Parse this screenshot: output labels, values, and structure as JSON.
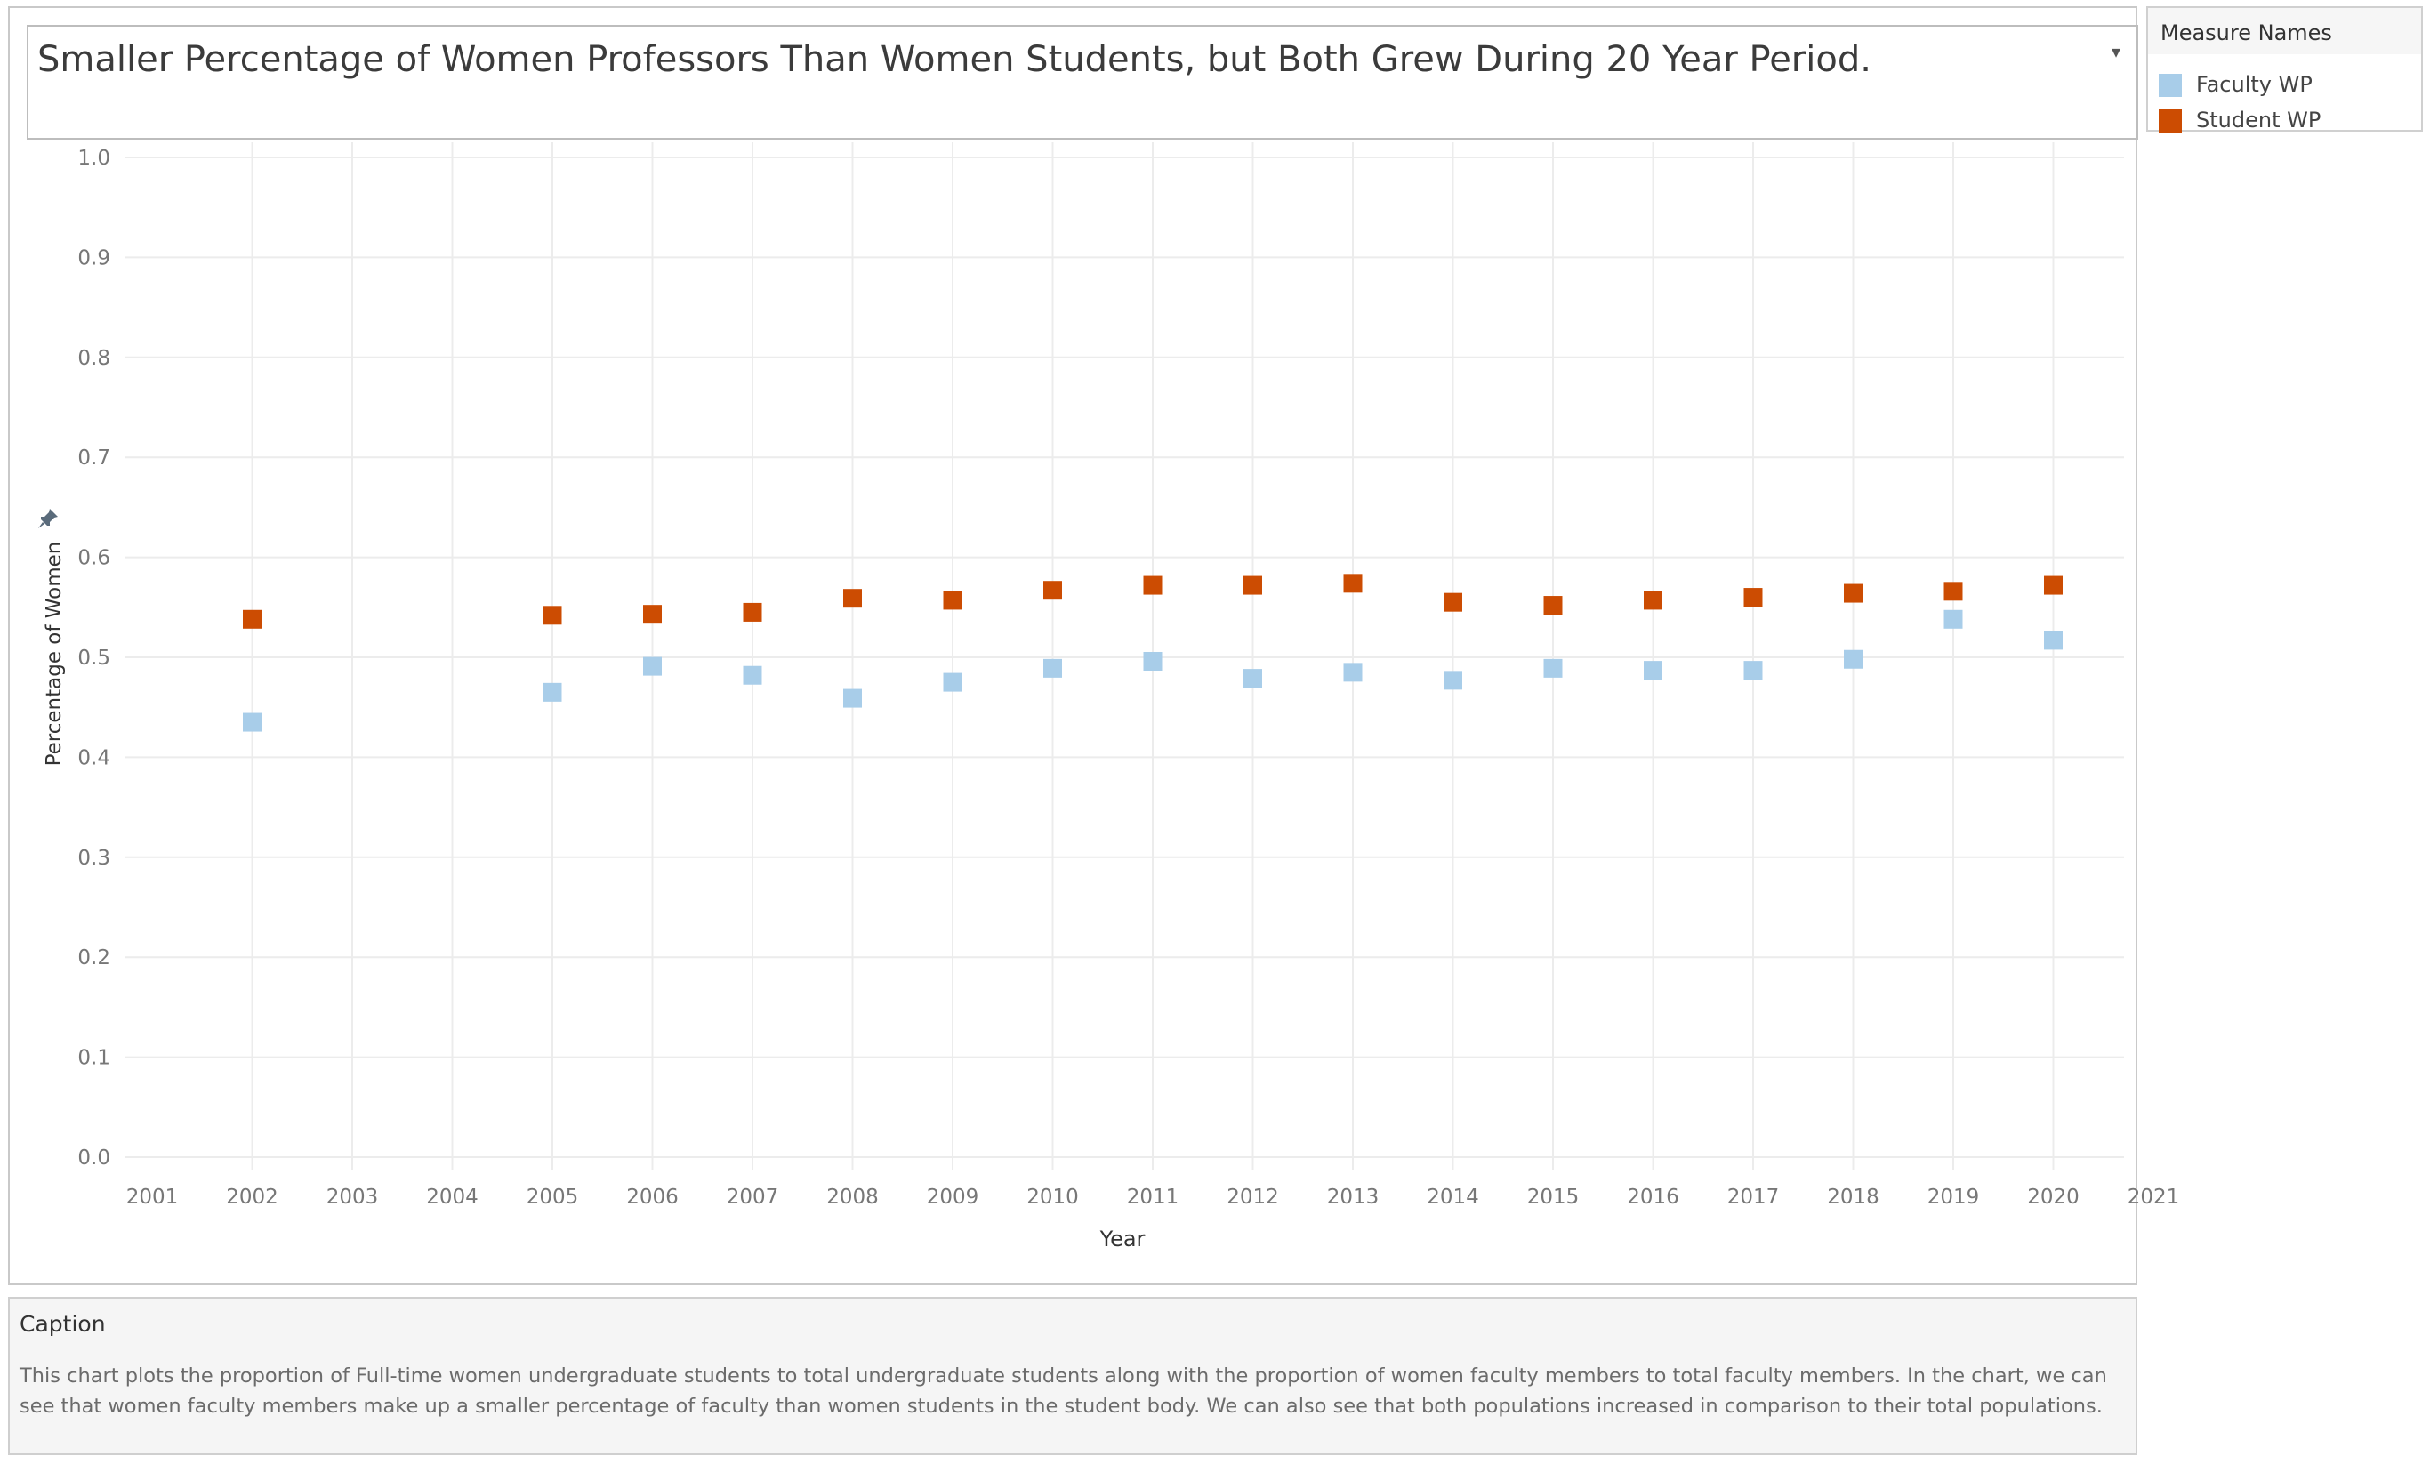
{
  "title": "Smaller Percentage of Women Professors Than Women Students, but Both Grew During 20 Year Period.",
  "icons": {
    "title_menu": "dropdown-arrow-icon",
    "axis_pin": "pin-icon"
  },
  "legend": {
    "title": "Measure Names",
    "items": [
      {
        "label": "Faculty WP",
        "color": "#a8cde9"
      },
      {
        "label": "Student WP",
        "color": "#cc4c02"
      }
    ]
  },
  "caption": {
    "title": "Caption",
    "text": "This chart plots the proportion of Full-time women undergraduate students to total undergraduate students along with the proportion of women faculty members to total faculty members. In the chart, we can see that women faculty members make up a smaller percentage of faculty than women students in the student body. We can also see that both populations increased in comparison to their total populations."
  },
  "chart_data": {
    "type": "scatter",
    "title": "Smaller Percentage of Women Professors Than Women Students, but Both Grew During 20 Year Period.",
    "xlabel": "Year",
    "ylabel": "Percentage of Women",
    "xlim": [
      2001,
      2021
    ],
    "ylim": [
      0.0,
      1.0
    ],
    "x_ticks": [
      "2001",
      "2002",
      "2003",
      "2004",
      "2005",
      "2006",
      "2007",
      "2008",
      "2009",
      "2010",
      "2011",
      "2012",
      "2013",
      "2014",
      "2015",
      "2016",
      "2017",
      "2018",
      "2019",
      "2020",
      "2021"
    ],
    "y_ticks": [
      "0.0",
      "0.1",
      "0.2",
      "0.3",
      "0.4",
      "0.5",
      "0.6",
      "0.7",
      "0.8",
      "0.9",
      "1.0"
    ],
    "grid": true,
    "legend_position": "top-right",
    "marker": "square",
    "series": [
      {
        "name": "Faculty WP",
        "color": "#a8cde9",
        "x": [
          2002,
          2005,
          2006,
          2007,
          2008,
          2009,
          2010,
          2011,
          2012,
          2013,
          2014,
          2015,
          2016,
          2017,
          2018,
          2019,
          2020
        ],
        "y": [
          0.435,
          0.465,
          0.491,
          0.482,
          0.459,
          0.475,
          0.489,
          0.496,
          0.479,
          0.485,
          0.477,
          0.489,
          0.487,
          0.487,
          0.498,
          0.538,
          0.517
        ]
      },
      {
        "name": "Student WP",
        "color": "#cc4c02",
        "x": [
          2002,
          2005,
          2006,
          2007,
          2008,
          2009,
          2010,
          2011,
          2012,
          2013,
          2014,
          2015,
          2016,
          2017,
          2018,
          2019,
          2020
        ],
        "y": [
          0.538,
          0.542,
          0.543,
          0.545,
          0.559,
          0.557,
          0.567,
          0.572,
          0.572,
          0.574,
          0.555,
          0.552,
          0.557,
          0.56,
          0.564,
          0.566,
          0.572
        ]
      }
    ]
  }
}
